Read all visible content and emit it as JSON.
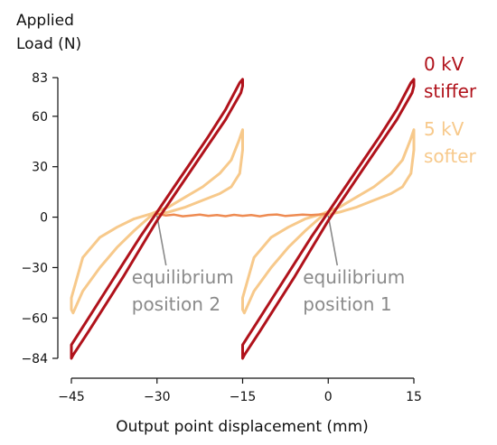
{
  "chart_data": {
    "type": "line",
    "title": "",
    "ylabel_line1": "Applied",
    "ylabel_line2": "Load  (N)",
    "xlabel": "Output point displacement (mm)",
    "xlim": [
      -45,
      15
    ],
    "ylim": [
      -84,
      83
    ],
    "x_ticks": [
      -45,
      -30,
      -15,
      0,
      15
    ],
    "x_tick_labels": [
      "−45",
      "−30",
      "−15",
      "0",
      "15"
    ],
    "y_ticks": [
      83,
      60,
      30,
      0,
      -30,
      -60,
      -84
    ],
    "y_tick_labels": [
      "83",
      "60",
      "30",
      "0",
      "−30",
      "−60",
      "−84"
    ],
    "grid": false,
    "legend": [
      {
        "line1": "0 kV",
        "line2": "stiffer",
        "color": "#b0121b"
      },
      {
        "line1": "5 kV",
        "line2": "softer",
        "color": "#f7c98b"
      }
    ],
    "annotations": [
      {
        "line1": "equilibrium",
        "line2": "position 2",
        "points_to": [
          -30,
          2
        ]
      },
      {
        "line1": "equilibrium",
        "line2": "position 1",
        "points_to": [
          0,
          2
        ]
      }
    ],
    "series": [
      {
        "name": "0 kV",
        "color": "#b0121b",
        "loops": [
          {
            "upper": [
              [
                -45,
                -76
              ],
              [
                -42,
                -60
              ],
              [
                -39,
                -44
              ],
              [
                -36,
                -28
              ],
              [
                -33,
                -12
              ],
              [
                -30,
                3
              ],
              [
                -27,
                18
              ],
              [
                -24,
                33
              ],
              [
                -21,
                48
              ],
              [
                -18,
                64
              ],
              [
                -15.5,
                80
              ],
              [
                -15,
                82
              ]
            ],
            "lower": [
              [
                -45,
                -84
              ],
              [
                -44.7,
                -82
              ],
              [
                -42,
                -68
              ],
              [
                -39,
                -52
              ],
              [
                -36,
                -36
              ],
              [
                -33,
                -19
              ],
              [
                -30,
                -2
              ],
              [
                -27,
                13
              ],
              [
                -24,
                28
              ],
              [
                -21,
                43
              ],
              [
                -18,
                58
              ],
              [
                -15.3,
                74
              ],
              [
                -15,
                78
              ]
            ]
          },
          {
            "upper": [
              [
                -15,
                -76
              ],
              [
                -12,
                -60
              ],
              [
                -9,
                -44
              ],
              [
                -6,
                -28
              ],
              [
                -3,
                -12
              ],
              [
                0,
                3
              ],
              [
                3,
                18
              ],
              [
                6,
                33
              ],
              [
                9,
                48
              ],
              [
                12,
                64
              ],
              [
                14.5,
                80
              ],
              [
                15,
                82
              ]
            ],
            "lower": [
              [
                -15,
                -84
              ],
              [
                -14.7,
                -82
              ],
              [
                -12,
                -68
              ],
              [
                -9,
                -52
              ],
              [
                -6,
                -36
              ],
              [
                -3,
                -19
              ],
              [
                0,
                -2
              ],
              [
                3,
                13
              ],
              [
                6,
                28
              ],
              [
                9,
                43
              ],
              [
                12,
                58
              ],
              [
                14.7,
                74
              ],
              [
                15,
                78
              ]
            ]
          }
        ]
      },
      {
        "name": "5 kV",
        "color": "#f7c98b",
        "loops": [
          {
            "upper": [
              [
                -45,
                -48
              ],
              [
                -43,
                -24
              ],
              [
                -40,
                -12
              ],
              [
                -37,
                -6
              ],
              [
                -34,
                -1
              ],
              [
                -31,
                2
              ],
              [
                -28,
                6
              ],
              [
                -25,
                12
              ],
              [
                -22,
                18
              ],
              [
                -19,
                26
              ],
              [
                -17,
                34
              ],
              [
                -15.6,
                46
              ],
              [
                -15,
                52
              ]
            ],
            "lower": [
              [
                -45,
                -55
              ],
              [
                -44.7,
                -57
              ],
              [
                -43,
                -44
              ],
              [
                -40,
                -30
              ],
              [
                -37,
                -18
              ],
              [
                -34,
                -8
              ],
              [
                -31,
                1
              ],
              [
                -28,
                3
              ],
              [
                -25,
                6
              ],
              [
                -22,
                10
              ],
              [
                -19,
                14
              ],
              [
                -17,
                18
              ],
              [
                -15.5,
                26
              ],
              [
                -15,
                40
              ]
            ]
          },
          {
            "upper": [
              [
                -15,
                -48
              ],
              [
                -13,
                -24
              ],
              [
                -10,
                -12
              ],
              [
                -7,
                -6
              ],
              [
                -4,
                -1
              ],
              [
                -1,
                2
              ],
              [
                2,
                6
              ],
              [
                5,
                12
              ],
              [
                8,
                18
              ],
              [
                11,
                26
              ],
              [
                13,
                34
              ],
              [
                14.4,
                46
              ],
              [
                15,
                52
              ]
            ],
            "lower": [
              [
                -15,
                -55
              ],
              [
                -14.7,
                -57
              ],
              [
                -13,
                -44
              ],
              [
                -10,
                -30
              ],
              [
                -7,
                -18
              ],
              [
                -4,
                -8
              ],
              [
                -1,
                1
              ],
              [
                2,
                3
              ],
              [
                5,
                6
              ],
              [
                8,
                10
              ],
              [
                11,
                14
              ],
              [
                13,
                18
              ],
              [
                14.5,
                26
              ],
              [
                15,
                40
              ]
            ]
          }
        ]
      },
      {
        "name": "transition",
        "color": "#ee8b52",
        "points": [
          [
            -30,
            2
          ],
          [
            -28.5,
            1
          ],
          [
            -27,
            1.5
          ],
          [
            -25.5,
            0.5
          ],
          [
            -24,
            1
          ],
          [
            -22.5,
            1.5
          ],
          [
            -21,
            0.8
          ],
          [
            -19.5,
            1.2
          ],
          [
            -18,
            0.6
          ],
          [
            -16.5,
            1.4
          ],
          [
            -15,
            0.8
          ],
          [
            -13.5,
            1.2
          ],
          [
            -12,
            0.5
          ],
          [
            -10.5,
            1.3
          ],
          [
            -9,
            1.6
          ],
          [
            -7.5,
            0.7
          ],
          [
            -6,
            1.1
          ],
          [
            -4.5,
            1.5
          ],
          [
            -3,
            1.2
          ],
          [
            -1.5,
            1.6
          ],
          [
            0,
            2
          ]
        ]
      }
    ]
  }
}
